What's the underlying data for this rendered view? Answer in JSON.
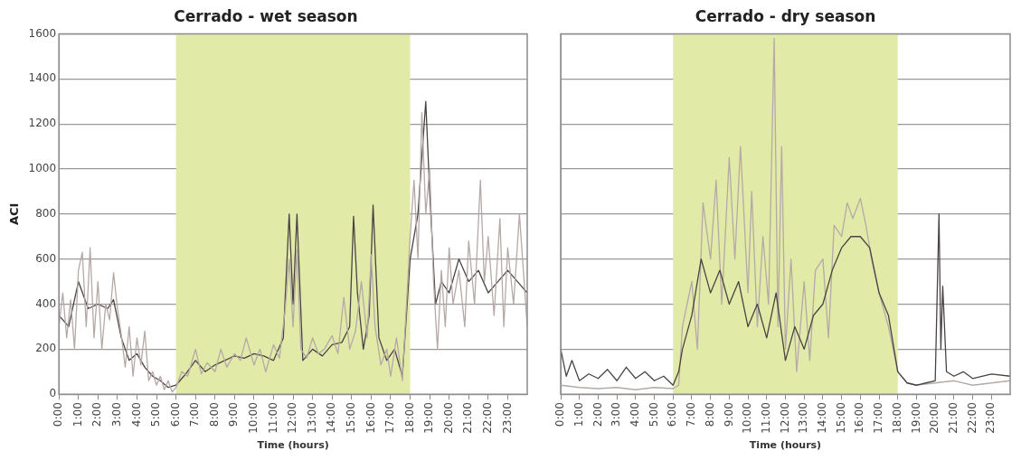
{
  "chart_data": [
    {
      "type": "line",
      "title": "Cerrado - wet season",
      "xlabel": "Time (hours)",
      "ylabel": "ACI",
      "xlim": [
        0,
        24
      ],
      "ylim": [
        0,
        1600
      ],
      "yticks": [
        0,
        200,
        400,
        600,
        800,
        1000,
        1200,
        1400,
        1600
      ],
      "xticks": [
        {
          "value": 0,
          "label": "0:00"
        },
        {
          "value": 1,
          "label": "1:00"
        },
        {
          "value": 2,
          "label": "2:00"
        },
        {
          "value": 3,
          "label": "3:00"
        },
        {
          "value": 4,
          "label": "4:00"
        },
        {
          "value": 5,
          "label": "5:00"
        },
        {
          "value": 6,
          "label": "6:00"
        },
        {
          "value": 7,
          "label": "7:00"
        },
        {
          "value": 8,
          "label": "8:00"
        },
        {
          "value": 9,
          "label": "9:00"
        },
        {
          "value": 10,
          "label": "10:00"
        },
        {
          "value": 11,
          "label": "11:00"
        },
        {
          "value": 12,
          "label": "12:00"
        },
        {
          "value": 13,
          "label": "13:00"
        },
        {
          "value": 14,
          "label": "14:00"
        },
        {
          "value": 15,
          "label": "15:00"
        },
        {
          "value": 16,
          "label": "16:00"
        },
        {
          "value": 17,
          "label": "17:00"
        },
        {
          "value": 18,
          "label": "18:00"
        },
        {
          "value": 19,
          "label": "19:00"
        },
        {
          "value": 20,
          "label": "20:00"
        },
        {
          "value": 21,
          "label": "21:00"
        },
        {
          "value": 22,
          "label": "22:00"
        },
        {
          "value": 23,
          "label": "23:00"
        }
      ],
      "grid": "y",
      "marker": "none",
      "line_style": "solid",
      "bands": [
        {
          "axis": "x",
          "from": 6,
          "to": 18,
          "color": "#e2eaa8"
        }
      ],
      "series": [
        {
          "color": "#b5a9a7",
          "x": [
            0,
            0.2,
            0.4,
            0.6,
            0.8,
            1.0,
            1.2,
            1.4,
            1.6,
            1.8,
            2.0,
            2.2,
            2.4,
            2.6,
            2.8,
            3.0,
            3.2,
            3.4,
            3.6,
            3.8,
            4.0,
            4.2,
            4.4,
            4.6,
            4.8,
            5.0,
            5.2,
            5.4,
            5.6,
            5.8,
            6.0,
            6.3,
            6.6,
            7.0,
            7.3,
            7.6,
            8.0,
            8.3,
            8.6,
            9.0,
            9.3,
            9.6,
            10.0,
            10.3,
            10.6,
            11.0,
            11.3,
            11.6,
            11.8,
            12.0,
            12.2,
            12.4,
            12.7,
            13.0,
            13.3,
            13.6,
            14.0,
            14.3,
            14.6,
            14.9,
            15.2,
            15.5,
            15.8,
            16.0,
            16.2,
            16.5,
            16.8,
            17.0,
            17.3,
            17.6,
            18.0,
            18.2,
            18.4,
            18.6,
            18.8,
            19.0,
            19.2,
            19.4,
            19.6,
            19.8,
            20.0,
            20.2,
            20.5,
            20.8,
            21.0,
            21.3,
            21.6,
            21.8,
            22.0,
            22.3,
            22.6,
            22.8,
            23.0,
            23.3,
            23.6,
            24.0
          ],
          "values": [
            300,
            450,
            250,
            420,
            200,
            550,
            630,
            300,
            650,
            250,
            500,
            200,
            400,
            330,
            540,
            380,
            260,
            120,
            300,
            80,
            250,
            130,
            280,
            60,
            100,
            40,
            80,
            20,
            60,
            10,
            30,
            100,
            80,
            200,
            90,
            140,
            100,
            200,
            120,
            180,
            150,
            250,
            130,
            200,
            100,
            220,
            160,
            380,
            600,
            300,
            640,
            200,
            160,
            250,
            180,
            200,
            260,
            180,
            430,
            200,
            280,
            500,
            250,
            620,
            300,
            130,
            200,
            80,
            250,
            60,
            700,
            950,
            600,
            1250,
            800,
            1000,
            500,
            200,
            550,
            300,
            650,
            400,
            550,
            300,
            680,
            400,
            950,
            500,
            700,
            350,
            780,
            300,
            650,
            400,
            800,
            300
          ]
        },
        {
          "color": "#4a4343",
          "x": [
            0,
            0.5,
            1.0,
            1.5,
            2.0,
            2.5,
            2.8,
            3.2,
            3.6,
            4.0,
            4.4,
            4.8,
            5.2,
            5.6,
            6.0,
            6.5,
            7.0,
            7.5,
            8.0,
            8.5,
            9.0,
            9.5,
            10.0,
            10.5,
            11.0,
            11.5,
            11.8,
            12.0,
            12.2,
            12.5,
            13.0,
            13.5,
            14.0,
            14.5,
            14.9,
            15.1,
            15.3,
            15.6,
            15.9,
            16.1,
            16.4,
            16.8,
            17.2,
            17.6,
            18.0,
            18.4,
            18.8,
            19.0,
            19.3,
            19.6,
            20.0,
            20.5,
            21.0,
            21.5,
            22.0,
            22.5,
            23.0,
            23.5,
            24.0
          ],
          "values": [
            350,
            300,
            500,
            380,
            400,
            380,
            420,
            250,
            150,
            180,
            120,
            80,
            60,
            30,
            40,
            90,
            150,
            100,
            130,
            150,
            170,
            160,
            180,
            170,
            150,
            250,
            800,
            400,
            800,
            150,
            200,
            170,
            220,
            230,
            300,
            790,
            450,
            200,
            350,
            840,
            250,
            150,
            200,
            80,
            600,
            800,
            1300,
            900,
            400,
            500,
            450,
            600,
            500,
            550,
            450,
            500,
            550,
            500,
            450
          ]
        }
      ]
    },
    {
      "type": "line",
      "title": "Cerrado - dry season",
      "xlabel": "Time (hours)",
      "xlim": [
        0,
        24
      ],
      "ylim": [
        0,
        1600
      ],
      "yticks": [
        0,
        200,
        400,
        600,
        800,
        1000,
        1200,
        1400,
        1600
      ],
      "tick_labels": "x",
      "xticks": [
        {
          "value": 0,
          "label": "0:00"
        },
        {
          "value": 1,
          "label": "1:00"
        },
        {
          "value": 2,
          "label": "2:00"
        },
        {
          "value": 3,
          "label": "3:00"
        },
        {
          "value": 4,
          "label": "4:00"
        },
        {
          "value": 5,
          "label": "5:00"
        },
        {
          "value": 6,
          "label": "6:00"
        },
        {
          "value": 7,
          "label": "7:00"
        },
        {
          "value": 8,
          "label": "8:00"
        },
        {
          "value": 9,
          "label": "9:00"
        },
        {
          "value": 10,
          "label": "10:00"
        },
        {
          "value": 11,
          "label": "11:00"
        },
        {
          "value": 12,
          "label": "12:00"
        },
        {
          "value": 13,
          "label": "13:00"
        },
        {
          "value": 14,
          "label": "14:00"
        },
        {
          "value": 15,
          "label": "15:00"
        },
        {
          "value": 16,
          "label": "16:00"
        },
        {
          "value": 17,
          "label": "17:00"
        },
        {
          "value": 18,
          "label": "18:00"
        },
        {
          "value": 19,
          "label": "19:00"
        },
        {
          "value": 20,
          "label": "20:00"
        },
        {
          "value": 21,
          "label": "21:00"
        },
        {
          "value": 22,
          "label": "22:00"
        },
        {
          "value": 23,
          "label": "23:00"
        }
      ],
      "grid": "y",
      "marker": "none",
      "line_style": "solid",
      "bands": [
        {
          "axis": "x",
          "from": 6,
          "to": 18,
          "color": "#e2eaa8"
        }
      ],
      "series": [
        {
          "color": "#4a4343",
          "x": [
            0,
            0.3,
            0.6,
            1.0,
            1.5,
            2.0,
            2.5,
            3.0,
            3.5,
            4.0,
            4.5,
            5.0,
            5.5,
            6.0,
            6.3,
            6.5,
            7.0,
            7.5,
            8.0,
            8.5,
            9.0,
            9.5,
            10.0,
            10.5,
            11.0,
            11.5,
            12.0,
            12.5,
            13.0,
            13.5,
            14.0,
            14.5,
            15.0,
            15.5,
            16.0,
            16.5,
            17.0,
            17.5,
            18.0,
            18.5,
            19.0,
            19.5,
            20.0,
            20.2,
            20.3,
            20.4,
            20.6,
            21.0,
            21.5,
            22.0,
            22.5,
            23.0,
            24.0
          ],
          "values": [
            200,
            80,
            150,
            60,
            90,
            70,
            110,
            60,
            120,
            70,
            100,
            60,
            80,
            40,
            100,
            200,
            350,
            600,
            450,
            550,
            400,
            500,
            300,
            400,
            250,
            450,
            150,
            300,
            200,
            350,
            400,
            550,
            650,
            700,
            700,
            650,
            450,
            350,
            100,
            50,
            40,
            50,
            60,
            800,
            200,
            480,
            100,
            80,
            100,
            70,
            80,
            90,
            80
          ]
        },
        {
          "color": "#b5a9a7",
          "x": [
            0,
            1,
            2,
            3,
            4,
            5,
            6,
            6.3,
            6.5,
            7.0,
            7.3,
            7.6,
            8.0,
            8.3,
            8.6,
            9.0,
            9.3,
            9.6,
            10.0,
            10.2,
            10.5,
            10.8,
            11.1,
            11.4,
            11.6,
            11.8,
            12.0,
            12.3,
            12.6,
            13.0,
            13.3,
            13.6,
            14.0,
            14.3,
            14.6,
            15.0,
            15.3,
            15.6,
            16.0,
            16.3,
            16.6,
            17.0,
            17.5,
            18.0,
            18.5,
            19,
            20,
            21,
            22,
            23,
            24
          ],
          "values": [
            40,
            30,
            25,
            30,
            20,
            30,
            25,
            40,
            300,
            500,
            200,
            850,
            600,
            950,
            400,
            1050,
            600,
            1100,
            450,
            900,
            300,
            700,
            400,
            1580,
            300,
            1100,
            200,
            600,
            100,
            500,
            150,
            550,
            600,
            250,
            750,
            700,
            850,
            780,
            870,
            750,
            600,
            450,
            300,
            100,
            50,
            40,
            50,
            60,
            40,
            50,
            60
          ]
        }
      ]
    }
  ]
}
